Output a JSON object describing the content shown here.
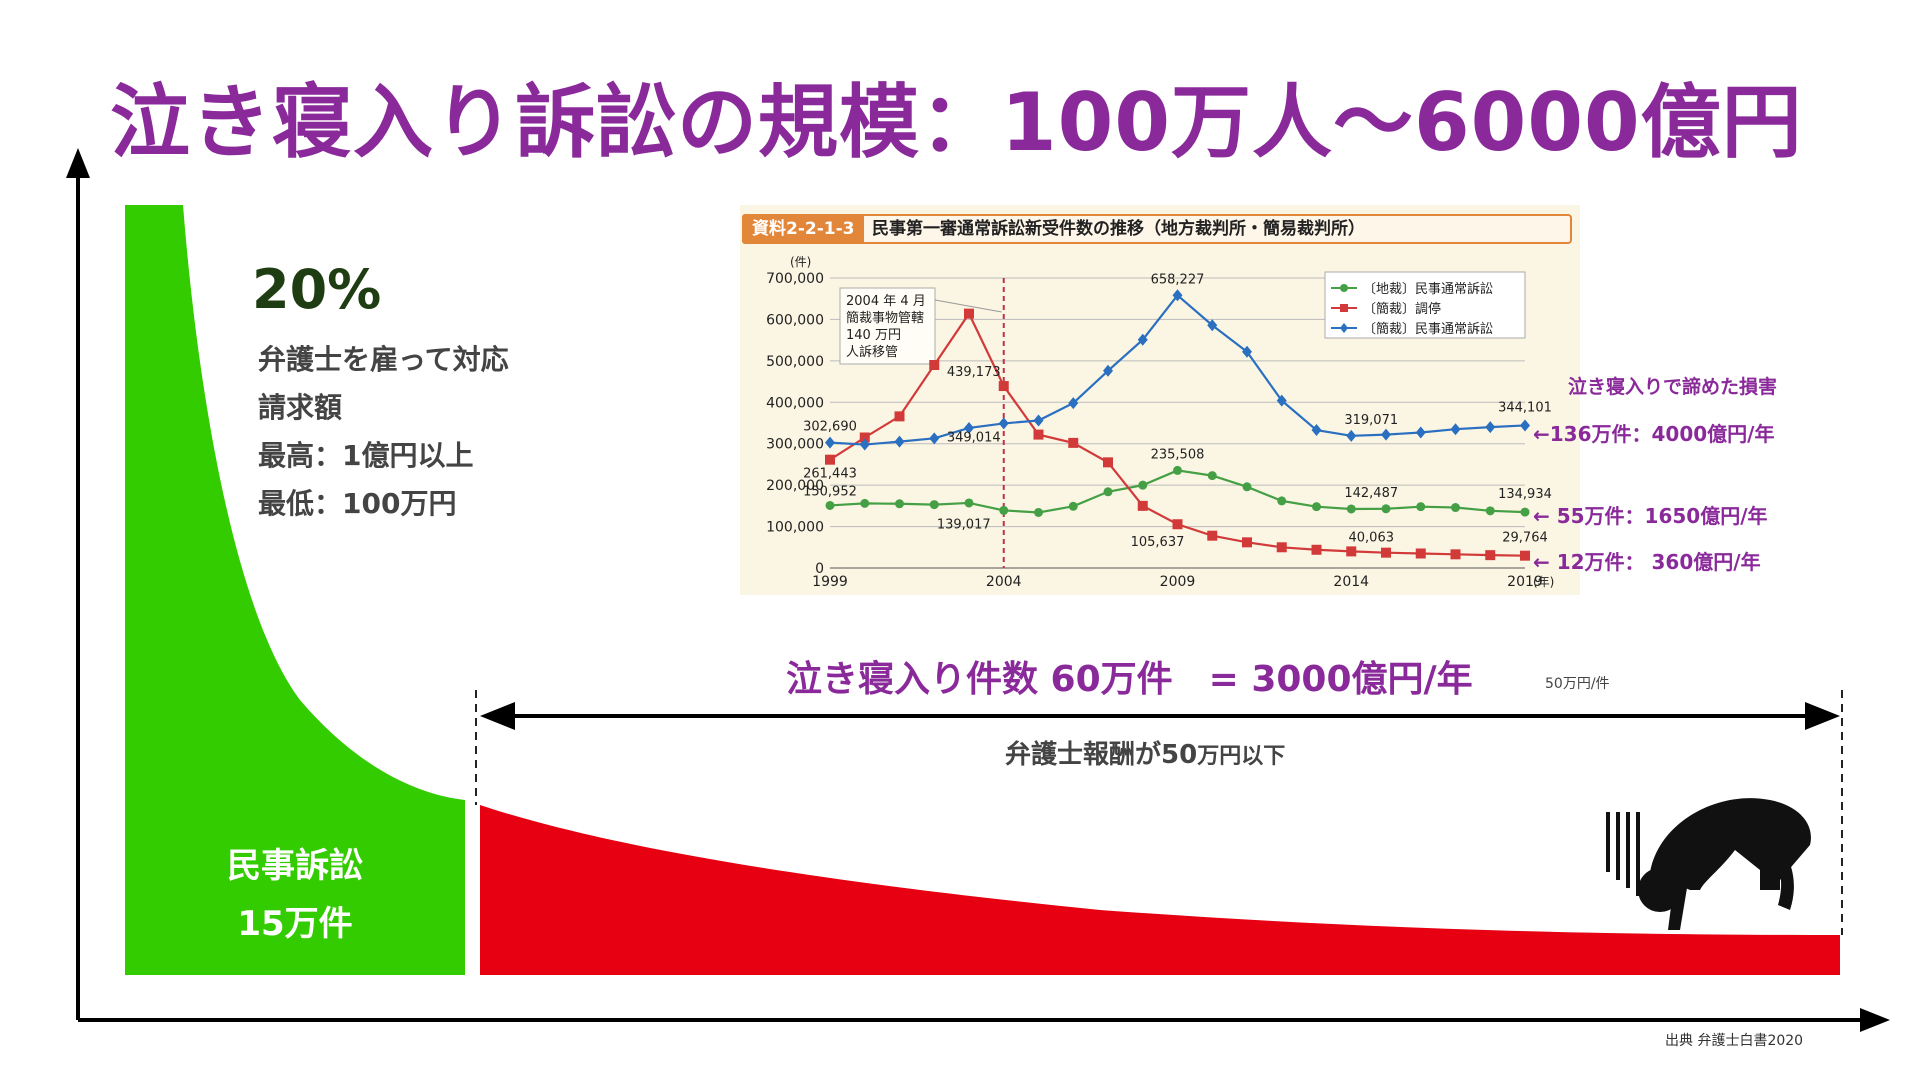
{
  "title": "泣き寝入り訴訟の規模：100万人〜6000億円",
  "left_block": {
    "percent": "20%",
    "lines": [
      "弁護士を雇って対応",
      "請求額",
      "最高：1億円以上",
      "最低：100万円"
    ],
    "bottom_label_1": "民事訴訟",
    "bottom_label_2": "15万件"
  },
  "right_block": {
    "headline": "泣き寝入り件数 60万件　= 3000億円/年",
    "headline_note": "50万円/件",
    "arrow_label_main": "弁護士報酬が50",
    "arrow_label_small": "万円以下"
  },
  "side_notes": {
    "header": "泣き寝入りで諦めた損害",
    "note_blue": "←136万件：4000億円/年",
    "note_green": "←  55万件：1650億円/年",
    "note_red": "←  12万件：  360億円/年"
  },
  "source": "出典 弁護士白書2020",
  "colors": {
    "title": "#8a2a9a",
    "green_area": "#33cc00",
    "red_area": "#e60012",
    "blue_line": "#2a6fc0",
    "green_line": "#45a045",
    "red_line": "#d23a3a",
    "inset_accent": "#e2863a"
  },
  "chart_data": [
    {
      "type": "area",
      "description_label": "distribution",
      "segments": [
        {
          "label": "民事訴訟 15万件",
          "color": "#33cc00"
        },
        {
          "label": "泣き寝入り件数 60万件",
          "color": "#e60012"
        }
      ]
    },
    {
      "type": "line",
      "code": "資料2-2-1-3",
      "title": "民事第一審通常訴訟新受件数の推移（地方裁判所・簡易裁判所）",
      "y_unit": "(件)",
      "x_unit": "(年)",
      "ylim": [
        0,
        700000
      ],
      "yticks": [
        "0",
        "100,000",
        "200,000",
        "300,000",
        "400,000",
        "500,000",
        "600,000",
        "700,000"
      ],
      "xticks": [
        "1999",
        "2004",
        "2009",
        "2014",
        "2019"
      ],
      "x": [
        1999,
        2000,
        2001,
        2002,
        2003,
        2004,
        2005,
        2006,
        2007,
        2008,
        2009,
        2010,
        2011,
        2012,
        2013,
        2014,
        2015,
        2016,
        2017,
        2018,
        2019
      ],
      "annotation": [
        "2004 年 4 月",
        "簡裁事物管轄",
        "140 万円",
        "人訴移管"
      ],
      "legend": [
        "〔地裁〕民事通常訴訟",
        "〔簡裁〕調停",
        "〔簡裁〕民事通常訴訟"
      ],
      "series": [
        {
          "name": "〔地裁〕民事通常訴訟",
          "color": "#45a045",
          "marker": "circle",
          "values": [
            150952,
            156000,
            155000,
            153000,
            157000,
            139017,
            134000,
            149000,
            184000,
            200000,
            235508,
            223000,
            196000,
            162000,
            148000,
            142487,
            143000,
            148000,
            146000,
            138000,
            134934
          ]
        },
        {
          "name": "〔簡裁〕調停",
          "color": "#d23a3a",
          "marker": "square",
          "values": [
            261443,
            315000,
            366000,
            490000,
            614000,
            439173,
            322000,
            302000,
            255000,
            150000,
            105637,
            78000,
            62000,
            50000,
            44000,
            40063,
            37000,
            35000,
            33000,
            31000,
            29764
          ]
        },
        {
          "name": "〔簡裁〕民事通常訴訟",
          "color": "#2a6fc0",
          "marker": "diamond",
          "values": [
            302690,
            298000,
            305000,
            313000,
            338000,
            349014,
            356000,
            398000,
            476000,
            551000,
            658227,
            586000,
            522000,
            404000,
            333000,
            319071,
            322000,
            327000,
            335000,
            340000,
            344101
          ]
        }
      ],
      "data_labels": [
        {
          "text": "302,690",
          "series": 2,
          "index": 0
        },
        {
          "text": "261,443",
          "series": 1,
          "index": 0
        },
        {
          "text": "150,952",
          "series": 0,
          "index": 0
        },
        {
          "text": "439,173",
          "series": 1,
          "index": 5
        },
        {
          "text": "349,014",
          "series": 2,
          "index": 5
        },
        {
          "text": "139,017",
          "series": 0,
          "index": 5
        },
        {
          "text": "658,227",
          "series": 2,
          "index": 10
        },
        {
          "text": "235,508",
          "series": 0,
          "index": 10
        },
        {
          "text": "105,637",
          "series": 1,
          "index": 10
        },
        {
          "text": "319,071",
          "series": 2,
          "index": 15
        },
        {
          "text": "142,487",
          "series": 0,
          "index": 15
        },
        {
          "text": "40,063",
          "series": 1,
          "index": 15
        },
        {
          "text": "344,101",
          "series": 2,
          "index": 20
        },
        {
          "text": "134,934",
          "series": 0,
          "index": 20
        },
        {
          "text": "29,764",
          "series": 1,
          "index": 20
        }
      ]
    }
  ]
}
